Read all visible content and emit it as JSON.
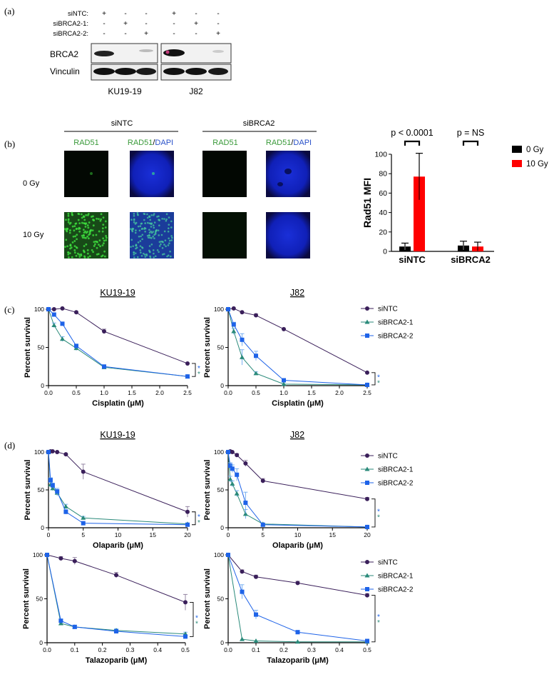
{
  "panel_letters": {
    "a": "(a)",
    "b": "(b)",
    "c": "(c)",
    "d": "(d)"
  },
  "colors": {
    "siNTC": "#3a1f5a",
    "siBRCA2_1": "#2a8a7a",
    "siBRCA2_2": "#1e63e8",
    "bar_0gy": "#000000",
    "bar_10gy": "#ff0000",
    "rad51_green": "#3a9a3a",
    "dapi_blue": "#2a52c9"
  },
  "western_blot": {
    "condition_labels": [
      "siNTC:",
      "siBRCA2-1:",
      "siBRCA2-2:"
    ],
    "signs": [
      [
        "+",
        "-",
        "-",
        "+",
        "-",
        "-"
      ],
      [
        "-",
        "+",
        "-",
        "-",
        "+",
        "-"
      ],
      [
        "-",
        "-",
        "+",
        "-",
        "-",
        "+"
      ]
    ],
    "row_labels": [
      "BRCA2",
      "Vinculin"
    ],
    "cell_lines": [
      "KU19-19",
      "J82"
    ]
  },
  "immunofluorescence": {
    "group_labels": [
      "siNTC",
      "siBRCA2"
    ],
    "channel_label_rad51": "RAD51",
    "channel_label_merge_a": "RAD51",
    "channel_label_merge_sep": "/",
    "channel_label_merge_b": "DAPI",
    "row_labels": [
      "0 Gy",
      "10 Gy"
    ]
  },
  "chart_data": [
    {
      "id": "b_rad51_mfi",
      "type": "bar",
      "ylabel": "Rad51 MFI",
      "ylim": [
        0,
        100
      ],
      "yticks": [
        0,
        20,
        40,
        60,
        80,
        100
      ],
      "categories": [
        "siNTC",
        "siBRCA2"
      ],
      "series": [
        {
          "name": "0 Gy",
          "values": [
            5,
            6
          ],
          "errors": [
            3.5,
            4.5
          ]
        },
        {
          "name": "10 Gy",
          "values": [
            77,
            5
          ],
          "errors": [
            24,
            4.5
          ]
        }
      ],
      "annotations": [
        "p < 0.0001",
        "p = NS"
      ],
      "legend": "top-right"
    },
    {
      "id": "c_ku19_cisplatin",
      "type": "line",
      "title": "KU19-19",
      "xlabel": "Cisplatin (μM)",
      "ylabel": "Percent survival",
      "xlim": [
        0,
        2.5
      ],
      "ylim": [
        0,
        100
      ],
      "xticks": [
        "0.0",
        "0.5",
        "1.0",
        "1.5",
        "2.0",
        "2.5"
      ],
      "yticks": [
        "0",
        "50",
        "100"
      ],
      "significance": [
        "*",
        "*"
      ],
      "series": [
        {
          "name": "siNTC",
          "x": [
            0,
            0.1,
            0.25,
            0.5,
            1,
            2.5
          ],
          "y": [
            100,
            100,
            101,
            96,
            71,
            29
          ],
          "err": [
            0,
            1,
            1,
            1,
            3,
            1
          ]
        },
        {
          "name": "siBRCA2-1",
          "x": [
            0,
            0.1,
            0.25,
            0.5,
            1,
            2.5
          ],
          "y": [
            100,
            79,
            61,
            49,
            24,
            12
          ],
          "err": [
            0,
            3,
            3,
            3,
            2,
            2
          ]
        },
        {
          "name": "siBRCA2-2",
          "x": [
            0,
            0.1,
            0.25,
            0.5,
            1,
            2.5
          ],
          "y": [
            100,
            93,
            81,
            52,
            25,
            12
          ],
          "err": [
            0,
            2,
            2,
            2,
            2,
            2
          ]
        }
      ]
    },
    {
      "id": "c_j82_cisplatin",
      "type": "line",
      "title": "J82",
      "xlabel": "Cisplatin (μM)",
      "ylabel": "Percent survival",
      "xlim": [
        0,
        2.5
      ],
      "ylim": [
        0,
        100
      ],
      "xticks": [
        "0.0",
        "0.5",
        "1.0",
        "1.5",
        "2.0",
        "2.5"
      ],
      "yticks": [
        "0",
        "50",
        "100"
      ],
      "significance": [
        "*",
        "*"
      ],
      "series": [
        {
          "name": "siNTC",
          "x": [
            0,
            0.1,
            0.25,
            0.5,
            1,
            2.5
          ],
          "y": [
            100,
            101,
            96,
            92,
            74,
            17
          ],
          "err": [
            0,
            1,
            1,
            2,
            1,
            1
          ]
        },
        {
          "name": "siBRCA2-1",
          "x": [
            0,
            0.1,
            0.25,
            0.5,
            1,
            2.5
          ],
          "y": [
            100,
            71,
            37,
            16,
            2,
            1
          ],
          "err": [
            0,
            4,
            10,
            2,
            1,
            1
          ]
        },
        {
          "name": "siBRCA2-2",
          "x": [
            0,
            0.1,
            0.25,
            0.5,
            1,
            2.5
          ],
          "y": [
            100,
            80,
            60,
            39,
            7,
            1
          ],
          "err": [
            0,
            3,
            8,
            6,
            2,
            1
          ]
        }
      ]
    },
    {
      "id": "d_ku19_olaparib",
      "type": "line",
      "title": "KU19-19",
      "xlabel": "Olaparib (μM)",
      "ylabel": "Percent survival",
      "xlim": [
        0,
        20
      ],
      "ylim": [
        0,
        100
      ],
      "xticks": [
        "0",
        "5",
        "10",
        "15",
        "20"
      ],
      "yticks": [
        "0",
        "50",
        "100"
      ],
      "significance": [
        "*",
        "*"
      ],
      "series": [
        {
          "name": "siNTC",
          "x": [
            0,
            0.3,
            0.6,
            1.25,
            2.5,
            5,
            20
          ],
          "y": [
            100,
            101,
            101,
            100,
            97,
            74,
            21
          ],
          "err": [
            0,
            1,
            1,
            1,
            1,
            10,
            7
          ]
        },
        {
          "name": "siBRCA2-1",
          "x": [
            0,
            0.3,
            0.6,
            1.25,
            2.5,
            5,
            20
          ],
          "y": [
            100,
            57,
            52,
            46,
            28,
            13,
            5
          ],
          "err": [
            0,
            3,
            3,
            4,
            3,
            2,
            1
          ]
        },
        {
          "name": "siBRCA2-2",
          "x": [
            0,
            0.3,
            0.6,
            1.25,
            2.5,
            5,
            20
          ],
          "y": [
            100,
            63,
            56,
            48,
            21,
            6,
            4
          ],
          "err": [
            0,
            3,
            3,
            4,
            3,
            1,
            1
          ]
        }
      ]
    },
    {
      "id": "d_j82_olaparib",
      "type": "line",
      "title": "J82",
      "xlabel": "Olaparib (μM)",
      "ylabel": "Percent survival",
      "xlim": [
        0,
        20
      ],
      "ylim": [
        0,
        100
      ],
      "xticks": [
        "0",
        "5",
        "10",
        "15",
        "20"
      ],
      "yticks": [
        "0",
        "50",
        "100"
      ],
      "significance": [
        "*",
        "*"
      ],
      "series": [
        {
          "name": "siNTC",
          "x": [
            0,
            0.3,
            0.6,
            1.25,
            2.5,
            5,
            20
          ],
          "y": [
            100,
            101,
            100,
            96,
            85,
            62,
            38
          ],
          "err": [
            0,
            1,
            1,
            2,
            4,
            3,
            2
          ]
        },
        {
          "name": "siBRCA2-1",
          "x": [
            0,
            0.3,
            0.6,
            1.25,
            2.5,
            5,
            20
          ],
          "y": [
            100,
            64,
            58,
            45,
            18,
            5,
            1
          ],
          "err": [
            0,
            4,
            4,
            4,
            6,
            1,
            1
          ]
        },
        {
          "name": "siBRCA2-2",
          "x": [
            0,
            0.3,
            0.6,
            1.25,
            2.5,
            5,
            20
          ],
          "y": [
            100,
            82,
            78,
            70,
            33,
            4,
            1
          ],
          "err": [
            0,
            4,
            5,
            8,
            14,
            1,
            1
          ]
        }
      ]
    },
    {
      "id": "d_ku19_talazoparib",
      "type": "line",
      "xlabel": "Talazoparib (μM)",
      "ylabel": "Percent survival",
      "xlim": [
        0,
        0.5
      ],
      "ylim": [
        0,
        100
      ],
      "xticks": [
        "0.0",
        "0.1",
        "0.2",
        "0.3",
        "0.4",
        "0.5"
      ],
      "yticks": [
        "0",
        "50",
        "100"
      ],
      "significance": [
        "*",
        "*"
      ],
      "series": [
        {
          "name": "siNTC",
          "x": [
            0,
            0.05,
            0.1,
            0.25,
            0.5
          ],
          "y": [
            100,
            96,
            93,
            77,
            46
          ],
          "err": [
            0,
            2,
            4,
            3,
            9
          ]
        },
        {
          "name": "siBRCA2-1",
          "x": [
            0,
            0.05,
            0.1,
            0.25,
            0.5
          ],
          "y": [
            100,
            22,
            18,
            14,
            10
          ],
          "err": [
            0,
            2,
            2,
            2,
            2
          ]
        },
        {
          "name": "siBRCA2-2",
          "x": [
            0,
            0.05,
            0.1,
            0.25,
            0.5
          ],
          "y": [
            100,
            25,
            18,
            13,
            7
          ],
          "err": [
            0,
            2,
            2,
            2,
            2
          ]
        }
      ]
    },
    {
      "id": "d_j82_talazoparib",
      "type": "line",
      "xlabel": "Talazoparib (μM)",
      "ylabel": "Percent survival",
      "xlim": [
        0,
        0.5
      ],
      "ylim": [
        0,
        100
      ],
      "xticks": [
        "0.0",
        "0.1",
        "0.2",
        "0.3",
        "0.4",
        "0.5"
      ],
      "yticks": [
        "0",
        "50",
        "100"
      ],
      "significance": [
        "*",
        "*"
      ],
      "series": [
        {
          "name": "siNTC",
          "x": [
            0,
            0.05,
            0.1,
            0.25,
            0.5
          ],
          "y": [
            100,
            81,
            75,
            68,
            54
          ],
          "err": [
            0,
            2,
            2,
            2,
            2
          ]
        },
        {
          "name": "siBRCA2-1",
          "x": [
            0,
            0.05,
            0.1,
            0.25,
            0.5
          ],
          "y": [
            100,
            4,
            2,
            1,
            1
          ],
          "err": [
            0,
            1,
            1,
            1,
            1
          ]
        },
        {
          "name": "siBRCA2-2",
          "x": [
            0,
            0.05,
            0.1,
            0.25,
            0.5
          ],
          "y": [
            100,
            58,
            32,
            12,
            2
          ],
          "err": [
            0,
            8,
            5,
            2,
            1
          ]
        }
      ]
    }
  ],
  "legend_labels": [
    "siNTC",
    "siBRCA2-1",
    "siBRCA2-2"
  ]
}
